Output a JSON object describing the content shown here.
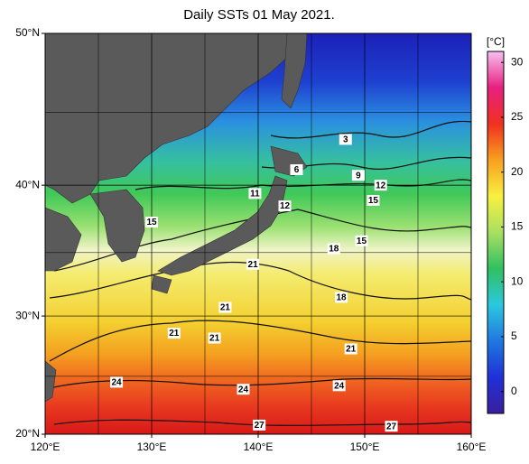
{
  "chart_data": {
    "type": "sst-map",
    "title": "Daily SSTs 01 May 2021.",
    "projection": "mercator",
    "xlim": [
      120,
      160
    ],
    "ylim": [
      20,
      50
    ],
    "xticks": [
      {
        "value": 120,
        "label": "120°E"
      },
      {
        "value": 130,
        "label": "130°E"
      },
      {
        "value": 140,
        "label": "140°E"
      },
      {
        "value": 150,
        "label": "150°E"
      },
      {
        "value": 160,
        "label": "160°E"
      }
    ],
    "yticks": [
      {
        "value": 20,
        "label": "20°N"
      },
      {
        "value": 30,
        "label": "30°N"
      },
      {
        "value": 40,
        "label": "40°N"
      },
      {
        "value": 50,
        "label": "50°N"
      }
    ],
    "grid": true,
    "colorbar": {
      "label": "[°C]",
      "lim": [
        -2,
        31
      ],
      "ticks": [
        0,
        5,
        10,
        15,
        20,
        25,
        30
      ],
      "colors": [
        "#3a1f9e",
        "#2030d8",
        "#1f78e0",
        "#2cc8e0",
        "#30c060",
        "#a8e060",
        "#f8f040",
        "#f8a020",
        "#f03020",
        "#e82080",
        "#f8c0f0"
      ]
    },
    "contour_labels": [
      {
        "value": 3,
        "lon": 148.2,
        "lat": 43.2
      },
      {
        "value": 6,
        "lon": 143.6,
        "lat": 41.1
      },
      {
        "value": 9,
        "lon": 149.4,
        "lat": 40.7
      },
      {
        "value": 12,
        "lon": 151.5,
        "lat": 40.0
      },
      {
        "value": 11,
        "lon": 139.7,
        "lat": 39.4
      },
      {
        "value": 12,
        "lon": 142.5,
        "lat": 38.5
      },
      {
        "value": 15,
        "lon": 150.8,
        "lat": 38.9
      },
      {
        "value": 15,
        "lon": 130.0,
        "lat": 37.3
      },
      {
        "value": 18,
        "lon": 147.1,
        "lat": 35.3
      },
      {
        "value": 15,
        "lon": 149.7,
        "lat": 35.9
      },
      {
        "value": 21,
        "lon": 139.5,
        "lat": 34.1
      },
      {
        "value": 18,
        "lon": 147.8,
        "lat": 31.5
      },
      {
        "value": 21,
        "lon": 136.9,
        "lat": 30.7
      },
      {
        "value": 21,
        "lon": 132.1,
        "lat": 28.6
      },
      {
        "value": 21,
        "lon": 135.9,
        "lat": 28.2
      },
      {
        "value": 21,
        "lon": 148.7,
        "lat": 27.3
      },
      {
        "value": 24,
        "lon": 126.7,
        "lat": 24.5
      },
      {
        "value": 24,
        "lon": 138.6,
        "lat": 23.9
      },
      {
        "value": 24,
        "lon": 147.6,
        "lat": 24.2
      },
      {
        "value": 27,
        "lon": 140.1,
        "lat": 20.8
      },
      {
        "value": 27,
        "lon": 152.5,
        "lat": 20.7
      }
    ]
  }
}
